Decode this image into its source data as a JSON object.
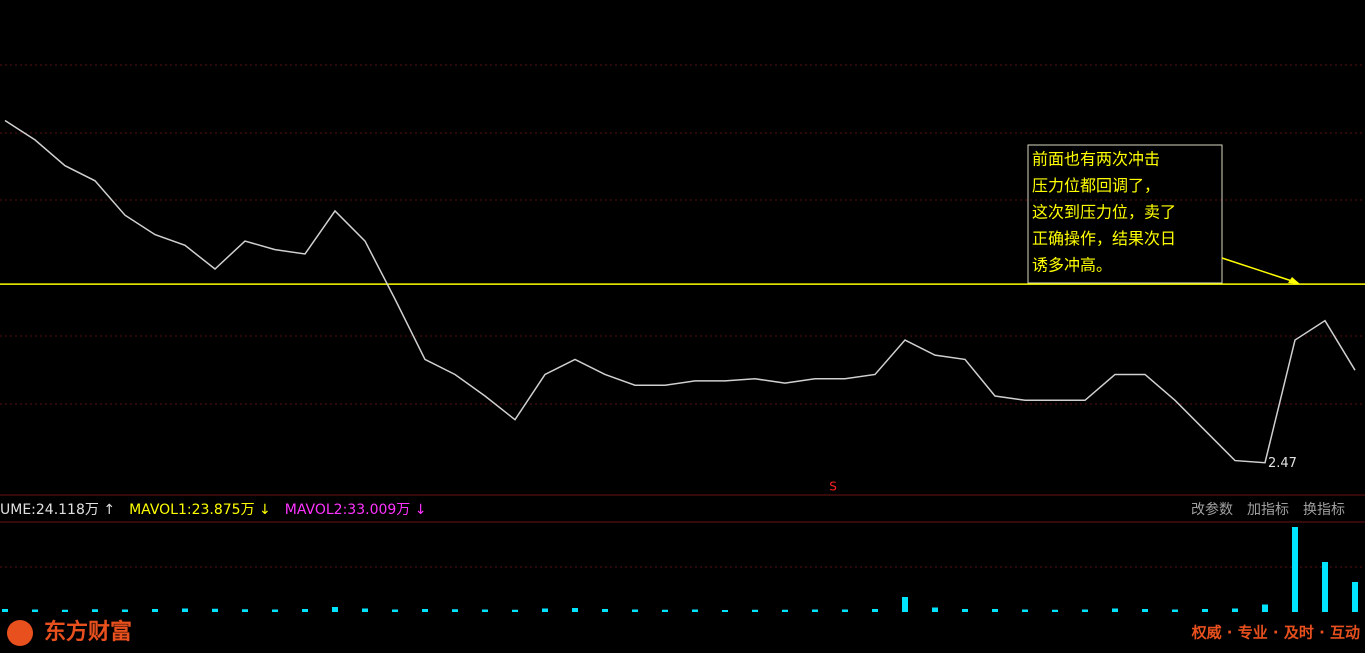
{
  "chart_data": {
    "type": "line",
    "closes": [
      4.04,
      3.95,
      3.83,
      3.76,
      3.6,
      3.51,
      3.46,
      3.35,
      3.48,
      3.44,
      3.42,
      3.62,
      3.48,
      3.21,
      2.93,
      2.86,
      2.76,
      2.65,
      2.86,
      2.93,
      2.86,
      2.81,
      2.81,
      2.83,
      2.83,
      2.84,
      2.82,
      2.84,
      2.84,
      2.86,
      3.02,
      2.95,
      2.93,
      2.76,
      2.74,
      2.74,
      2.74,
      2.86,
      2.86,
      2.74,
      2.6,
      2.46,
      2.45,
      3.02,
      3.11,
      2.88
    ],
    "price_color": "#d0d0d0",
    "ylim": [
      2.3,
      4.6
    ],
    "resistance": 3.28,
    "resistance_color": "#ffff00",
    "low_label": {
      "value": 2.47,
      "label": "2.47"
    },
    "signal": "S",
    "annotation": [
      "前面也有两次冲击",
      "压力位都回调了，",
      "这次到压力位，卖了",
      "正确操作，结果次日",
      "诱多冲高。"
    ],
    "volumes": [
      12,
      10,
      9,
      11,
      10,
      12,
      14,
      13,
      11,
      10,
      12,
      20,
      14,
      10,
      12,
      11,
      10,
      9,
      14,
      16,
      12,
      10,
      9,
      10,
      8,
      9,
      9,
      10,
      10,
      12,
      60,
      18,
      12,
      12,
      10,
      9,
      10,
      14,
      12,
      10,
      12,
      14,
      30,
      340,
      200,
      120
    ],
    "volume_color": "#00e5ff",
    "vol_ylim": [
      0,
      360
    ],
    "volume_legend": [
      {
        "text": "UME:24.118万 ↑",
        "color": "#e0e0e0"
      },
      {
        "text": "MAVOL1:23.875万 ↓",
        "color": "#ffff00"
      },
      {
        "text": "MAVOL2:33.009万 ↓",
        "color": "#ff33ff"
      }
    ],
    "buttons": [
      "改参数",
      "加指标",
      "换指标"
    ]
  },
  "footer": {
    "brand": "东方财富",
    "slogan": "权威 · 专业 · 及时 · 互动"
  }
}
